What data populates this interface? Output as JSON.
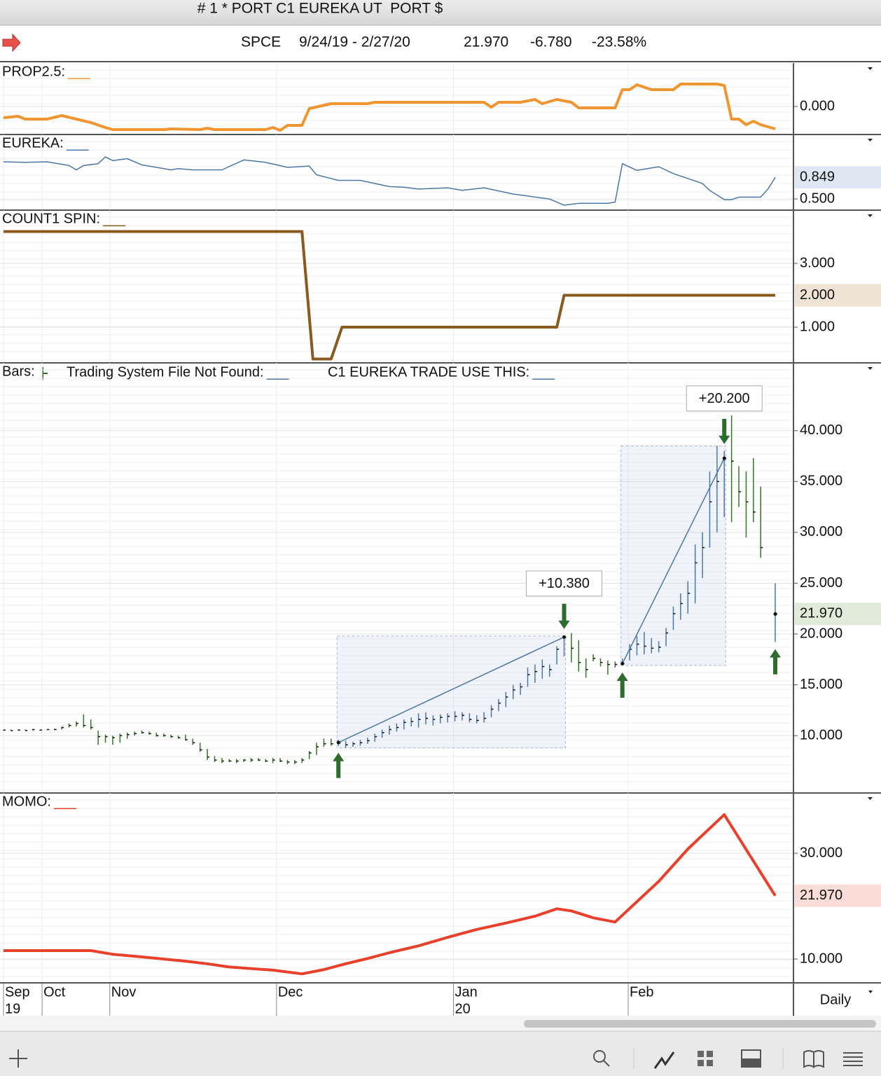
{
  "header": {
    "title": "# 1 * PORT C1 EUREKA UT  PORT $",
    "symbol": "SPCE",
    "date_range": "9/24/19 - 2/27/20",
    "last": "21.970",
    "change": "-6.780",
    "change_pct": "-23.58%"
  },
  "interval": "Daily",
  "chart_data": [
    {
      "type": "line",
      "title": "PROP2.5:",
      "series": [
        {
          "color": "#f0952f",
          "x": [
            0,
            2,
            3,
            6,
            8,
            10,
            12,
            14,
            15,
            22,
            23,
            27,
            28,
            29,
            36,
            37,
            38,
            39,
            41,
            42,
            45,
            50,
            51,
            66,
            67,
            68,
            71,
            73,
            74,
            76,
            78,
            79,
            84,
            85,
            86,
            87,
            89,
            92,
            93,
            98,
            99,
            100,
            101,
            102,
            103,
            104,
            106
          ],
          "values": [
            -0.16,
            -0.14,
            -0.18,
            -0.18,
            -0.13,
            -0.18,
            -0.23,
            -0.3,
            -0.33,
            -0.33,
            -0.32,
            -0.33,
            -0.31,
            -0.33,
            -0.33,
            -0.3,
            -0.34,
            -0.27,
            -0.27,
            -0.03,
            0.04,
            0.04,
            0.06,
            0.06,
            -0.01,
            0.06,
            0.06,
            0.1,
            0.04,
            0.1,
            0.06,
            -0.02,
            -0.02,
            0.24,
            0.24,
            0.31,
            0.24,
            0.24,
            0.32,
            0.32,
            0.3,
            -0.18,
            -0.18,
            -0.26,
            -0.21,
            -0.26,
            -0.32
          ]
        }
      ],
      "ylim": [
        -0.4,
        0.62
      ],
      "yticks": [
        {
          "value": 0,
          "label": "0.000"
        }
      ]
    },
    {
      "type": "line",
      "title": "EUREKA:",
      "series": [
        {
          "color": "#4a78a8",
          "x": [
            0,
            3,
            6,
            9,
            10,
            11,
            13,
            14,
            15,
            17,
            19,
            21,
            23,
            24,
            26,
            30,
            33,
            36,
            39,
            42,
            43,
            46,
            49,
            53,
            55,
            57,
            61,
            63,
            66,
            70,
            75,
            77,
            79,
            83,
            84,
            85,
            87,
            90,
            92,
            96,
            97,
            99,
            100,
            101,
            104,
            105,
            106
          ],
          "values": [
            1.1,
            1.09,
            1.1,
            1.04,
            0.97,
            1.04,
            1.07,
            1.18,
            1.12,
            1.15,
            1.05,
            1.01,
            0.97,
            0.99,
            0.97,
            0.97,
            1.13,
            1.09,
            1.01,
            1.03,
            0.89,
            0.8,
            0.8,
            0.7,
            0.69,
            0.66,
            0.68,
            0.64,
            0.68,
            0.58,
            0.5,
            0.4,
            0.43,
            0.43,
            0.45,
            1.07,
            0.96,
            1.02,
            0.91,
            0.75,
            0.64,
            0.49,
            0.49,
            0.53,
            0.53,
            0.66,
            0.849
          ]
        }
      ],
      "ylim": [
        0.32,
        1.54
      ],
      "yticks": [
        {
          "value": 0.5,
          "label": "0.500"
        }
      ],
      "last_label": "0.849",
      "label_bg": "#dfe8f2"
    },
    {
      "type": "line",
      "title": "COUNT1 SPIN:",
      "series": [
        {
          "color": "#8b5a1e",
          "x": [
            0,
            41,
            42.5,
            45,
            46.5,
            76,
            77,
            106
          ],
          "values": [
            4,
            4,
            0,
            0,
            1,
            1,
            2,
            2
          ]
        }
      ],
      "ylim": [
        -0.12,
        4.67
      ],
      "yticks": [
        {
          "value": 1,
          "label": "1.000"
        },
        {
          "value": 3,
          "label": "3.000"
        }
      ],
      "last_label": "2.000",
      "label_bg": "#efe3d6"
    },
    {
      "type": "ohlc",
      "title": "Bars:",
      "legend": [
        {
          "label": "Trading System File Not Found:",
          "color": "#4a78a8"
        },
        {
          "label": "C1 EUREKA TRADE USE THIS:",
          "color": "#4a78a8"
        }
      ],
      "bars": {
        "x": [
          0,
          1,
          2,
          3,
          4,
          5,
          6,
          7,
          8,
          9,
          10,
          11,
          12,
          13,
          14,
          15,
          16,
          17,
          18,
          19,
          20,
          21,
          22,
          23,
          24,
          25,
          26,
          27,
          28,
          29,
          30,
          31,
          32,
          33,
          34,
          35,
          36,
          37,
          38,
          39,
          40,
          41,
          42,
          43,
          44,
          45,
          46,
          47,
          48,
          49,
          50,
          51,
          52,
          53,
          54,
          55,
          56,
          57,
          58,
          59,
          60,
          61,
          62,
          63,
          64,
          65,
          66,
          67,
          68,
          69,
          70,
          71,
          72,
          73,
          74,
          75,
          76,
          77,
          78,
          79,
          80,
          81,
          82,
          83,
          84,
          85,
          86,
          87,
          88,
          89,
          90,
          91,
          92,
          93,
          94,
          95,
          96,
          97,
          98,
          99,
          100,
          101,
          102,
          103,
          104,
          106
        ],
        "high": [
          10.6,
          10.6,
          10.6,
          10.6,
          10.65,
          10.6,
          10.65,
          10.7,
          10.9,
          11.2,
          11.4,
          12.1,
          11.6,
          10.5,
          10.1,
          10.0,
          10.2,
          10.3,
          10.4,
          10.5,
          10.4,
          10.3,
          10.2,
          10.1,
          10.0,
          10.1,
          9.7,
          9.3,
          8.7,
          8.0,
          7.8,
          7.7,
          7.7,
          7.7,
          7.8,
          7.8,
          7.7,
          7.8,
          7.8,
          7.6,
          7.6,
          7.8,
          8.5,
          9.3,
          9.7,
          9.7,
          9.6,
          9.5,
          9.4,
          9.6,
          9.8,
          10.2,
          10.6,
          11.0,
          11.2,
          11.6,
          11.8,
          12.2,
          12.3,
          12.0,
          12.1,
          12.2,
          12.4,
          12.3,
          12.2,
          12.0,
          12.3,
          13.0,
          13.6,
          14.3,
          15.0,
          15.2,
          16.7,
          17.0,
          17.5,
          17.0,
          18.8,
          19.8,
          20.1,
          19.4,
          17.6,
          18.0,
          17.6,
          17.4,
          17.3,
          17.6,
          19.0,
          19.8,
          20.2,
          19.6,
          19.3,
          20.6,
          22.7,
          24.0,
          25.2,
          28.8,
          30.0,
          36.0,
          38.5,
          38.0,
          41.5,
          36.5,
          36.0,
          37.3,
          34.5,
          25.0
        ],
        "low": [
          10.5,
          10.5,
          10.5,
          10.5,
          10.5,
          10.5,
          10.55,
          10.55,
          10.6,
          10.8,
          10.9,
          10.8,
          10.6,
          9.1,
          9.3,
          9.1,
          9.3,
          9.7,
          10.0,
          10.2,
          10.1,
          9.9,
          9.9,
          9.8,
          9.7,
          9.5,
          9.1,
          8.4,
          7.6,
          7.4,
          7.3,
          7.4,
          7.3,
          7.4,
          7.4,
          7.5,
          7.4,
          7.3,
          7.4,
          7.2,
          7.2,
          7.3,
          7.7,
          8.1,
          8.9,
          9.0,
          9.0,
          8.8,
          8.9,
          9.0,
          9.2,
          9.4,
          9.8,
          10.1,
          10.4,
          10.6,
          10.9,
          10.8,
          11.1,
          11.0,
          11.2,
          11.3,
          11.4,
          11.5,
          11.3,
          11.2,
          11.3,
          11.8,
          12.4,
          12.8,
          13.6,
          14.0,
          14.8,
          15.2,
          15.6,
          15.8,
          17.0,
          17.8,
          17.2,
          16.3,
          15.7,
          17.3,
          16.8,
          16.0,
          16.7,
          16.9,
          17.4,
          17.9,
          18.0,
          18.1,
          18.2,
          18.8,
          20.4,
          21.4,
          22.0,
          23.0,
          25.5,
          28.5,
          30.0,
          31.5,
          31.0,
          32.5,
          29.5,
          31.0,
          27.5,
          19.2
        ],
        "close": [
          10.55,
          10.5,
          10.55,
          10.5,
          10.6,
          10.55,
          10.6,
          10.6,
          10.8,
          11.0,
          11.2,
          11.0,
          10.8,
          9.9,
          9.9,
          9.8,
          10.0,
          10.1,
          10.2,
          10.3,
          10.2,
          10.0,
          10.0,
          9.9,
          9.8,
          9.6,
          9.3,
          8.6,
          7.9,
          7.6,
          7.5,
          7.5,
          7.5,
          7.6,
          7.6,
          7.6,
          7.5,
          7.6,
          7.5,
          7.4,
          7.4,
          7.6,
          8.3,
          8.9,
          9.2,
          9.2,
          9.32,
          9.1,
          9.2,
          9.3,
          9.5,
          9.9,
          10.3,
          10.6,
          10.8,
          11.3,
          11.4,
          11.6,
          11.7,
          11.6,
          11.8,
          11.9,
          11.9,
          12.0,
          11.6,
          11.5,
          11.7,
          12.6,
          13.2,
          13.8,
          14.5,
          14.8,
          16.0,
          16.3,
          16.8,
          16.5,
          18.5,
          19.7,
          18.6,
          17.2,
          16.5,
          17.6,
          17.2,
          17.0,
          17.0,
          17.08,
          18.5,
          19.0,
          18.8,
          18.6,
          18.7,
          20.1,
          22.0,
          23.0,
          24.0,
          27.0,
          28.5,
          33.0,
          35.0,
          37.28,
          37.0,
          34.0,
          33.0,
          32.0,
          28.5,
          21.97
        ]
      },
      "bar_color": "#2f7a1f",
      "trade_bar_color": "#4a78a8",
      "arrow_color": "#2e6b2e",
      "trades": [
        {
          "entry_x": 46,
          "entry": 9.32,
          "exit_x": 77,
          "exit": 19.7,
          "label": "+10.380"
        },
        {
          "entry_x": 85,
          "entry": 17.08,
          "exit_x": 99,
          "exit": 37.28,
          "label": "+20.200"
        },
        {
          "entry_x": 106,
          "entry": 21.97
        }
      ],
      "ylim": [
        4.36,
        46.67
      ],
      "yticks": [
        {
          "value": 10,
          "label": "10.000"
        },
        {
          "value": 15,
          "label": "15.000"
        },
        {
          "value": 20,
          "label": "20.000"
        },
        {
          "value": 25,
          "label": "25.000"
        },
        {
          "value": 30,
          "label": "30.000"
        },
        {
          "value": 35,
          "label": "35.000"
        },
        {
          "value": 40,
          "label": "40.000"
        }
      ],
      "last_label": "21.970",
      "label_bg": "#e0ecd9"
    },
    {
      "type": "line",
      "title": "MOMO:",
      "series": [
        {
          "color": "#e8402a",
          "x": [
            0,
            12,
            15,
            19,
            25,
            28,
            31,
            37,
            41,
            44,
            47,
            50,
            53,
            57,
            61,
            65,
            69,
            73,
            76,
            78,
            81,
            84,
            90,
            94,
            99,
            106
          ],
          "values": [
            11.6,
            11.6,
            10.9,
            10.4,
            9.6,
            9.1,
            8.5,
            7.9,
            7.2,
            8.0,
            9.1,
            10.1,
            11.2,
            12.5,
            14.1,
            15.6,
            16.8,
            18.1,
            19.5,
            19.1,
            17.8,
            17.0,
            24.7,
            30.8,
            37.3,
            21.97
          ]
        }
      ],
      "ylim": [
        5.5,
        41.4
      ],
      "yticks": [
        {
          "value": 10,
          "label": "10.000"
        },
        {
          "value": 30,
          "label": "30.000"
        }
      ],
      "last_label": "21.970",
      "label_bg": "#fbdcd6",
      "xlim": [
        0,
        106
      ],
      "xticks": [
        {
          "value": 0,
          "label": "Sep"
        },
        {
          "value": 5.3,
          "label": "Oct"
        },
        {
          "value": 14.6,
          "label": "Nov"
        },
        {
          "value": 37.5,
          "label": "Dec"
        },
        {
          "value": 61.8,
          "label": "Jan"
        },
        {
          "value": 85.8,
          "label": "Feb"
        }
      ],
      "year_labels": [
        {
          "value": 0,
          "label": "19"
        },
        {
          "value": 61.8,
          "label": "20"
        }
      ]
    }
  ]
}
